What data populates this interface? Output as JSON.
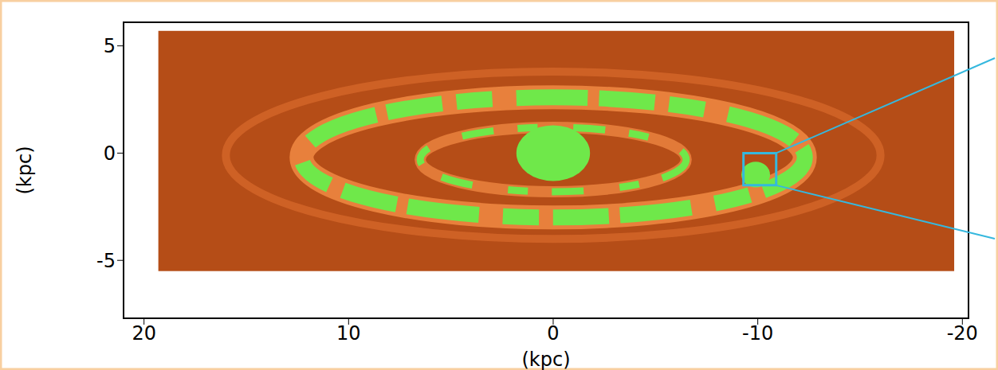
{
  "chart_data": {
    "type": "image",
    "xlabel": "(kpc)",
    "ylabel": "(kpc)",
    "xlim": [
      21,
      -20.3
    ],
    "ylim": [
      -7.7,
      6.1
    ],
    "xticks": [
      20,
      10,
      0,
      -10,
      -20
    ],
    "yticks": [
      -5,
      0,
      5
    ],
    "image_extent": {
      "x": [
        19.3,
        -19.6
      ],
      "y": [
        -5.5,
        5.7
      ]
    },
    "highlight_box": {
      "x": [
        -9.3,
        -10.9
      ],
      "y": [
        -1.5,
        0
      ]
    }
  }
}
